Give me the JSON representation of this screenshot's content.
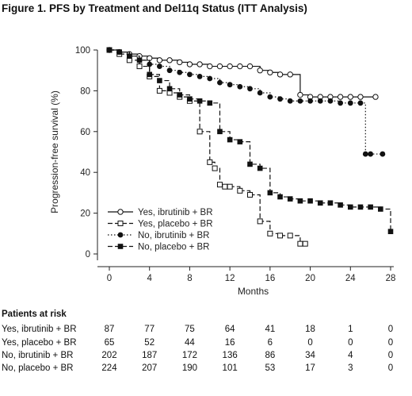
{
  "figure_title": "Figure 1. PFS by Treatment and Del11q Status (ITT Analysis)",
  "chart_data": {
    "type": "line",
    "title": "Figure 1. PFS by Treatment and Del11q Status (ITT Analysis)",
    "xlabel": "Months",
    "ylabel": "Progression-free survival (%)",
    "xlim": [
      0,
      28
    ],
    "ylim": [
      0,
      100
    ],
    "xticks": [
      "0",
      "4",
      "8",
      "12",
      "16",
      "20",
      "24",
      "28"
    ],
    "yticks": [
      "0",
      "20",
      "40",
      "60",
      "80",
      "100"
    ],
    "grid": false,
    "legend_position": "bottom-left",
    "series": [
      {
        "name": "Yes, ibrutinib + BR",
        "line_style": "solid",
        "marker": "open-circle",
        "x": [
          0,
          1,
          2,
          3,
          4,
          5,
          6,
          7,
          8,
          9,
          10,
          11,
          12,
          13,
          14,
          15,
          16,
          17,
          18,
          19,
          20,
          21,
          22,
          23,
          24,
          25,
          26.5
        ],
        "y": [
          100,
          99,
          98,
          97,
          96,
          95,
          95,
          94,
          93,
          93,
          92,
          92,
          92,
          92,
          92,
          90,
          89,
          88,
          88,
          78,
          77,
          77,
          77,
          77,
          77,
          77,
          77
        ]
      },
      {
        "name": "Yes, placebo + BR",
        "line_style": "dashed",
        "marker": "open-square",
        "x": [
          0,
          1,
          2,
          3,
          4,
          5,
          6,
          7,
          8,
          9,
          10,
          10.5,
          11,
          11.5,
          12,
          13,
          14,
          15,
          16,
          17,
          18,
          19,
          19.5
        ],
        "y": [
          100,
          98,
          95,
          92,
          87,
          80,
          79,
          77,
          75,
          60,
          45,
          42,
          34,
          33,
          33,
          31,
          29,
          16,
          10,
          9,
          9,
          5,
          5
        ]
      },
      {
        "name": "No, ibrutinib + BR",
        "line_style": "dotted",
        "marker": "filled-circle",
        "x": [
          0,
          1,
          2,
          3,
          4,
          5,
          6,
          7,
          8,
          9,
          10,
          11,
          12,
          13,
          14,
          15,
          16,
          17,
          18,
          19,
          20,
          21,
          22,
          23,
          24,
          25,
          25.5,
          26,
          27.2
        ],
        "y": [
          100,
          99,
          97,
          95,
          93,
          92,
          90,
          89,
          88,
          87,
          86,
          84,
          83,
          82,
          81,
          79,
          77,
          76,
          75,
          75,
          75,
          75,
          75,
          74,
          74,
          74,
          49,
          49,
          49
        ]
      },
      {
        "name": "No, placebo + BR",
        "line_style": "dashed",
        "marker": "filled-square",
        "x": [
          0,
          1,
          2,
          3,
          4,
          5,
          6,
          7,
          8,
          9,
          10,
          11,
          12,
          13,
          14,
          15,
          16,
          17,
          18,
          19,
          20,
          21,
          22,
          23,
          24,
          25,
          26,
          27,
          28
        ],
        "y": [
          100,
          99,
          97,
          95,
          88,
          85,
          81,
          78,
          76,
          75,
          74,
          60,
          56,
          55,
          44,
          42,
          30,
          28,
          27,
          26,
          26,
          25,
          25,
          24,
          23,
          23,
          23,
          22,
          11
        ]
      }
    ]
  },
  "risk_table": {
    "title": "Patients at risk",
    "rows": [
      {
        "label": "Yes, ibrutinib + BR",
        "values": [
          "87",
          "77",
          "75",
          "64",
          "41",
          "18",
          "1",
          "0"
        ]
      },
      {
        "label": "Yes, placebo + BR",
        "values": [
          "65",
          "52",
          "44",
          "16",
          "6",
          "0",
          "0",
          "0"
        ]
      },
      {
        "label": "No, ibrutinib + BR",
        "values": [
          "202",
          "187",
          "172",
          "136",
          "86",
          "34",
          "4",
          "0"
        ]
      },
      {
        "label": "No, placebo + BR",
        "values": [
          "224",
          "207",
          "190",
          "101",
          "53",
          "17",
          "3",
          "0"
        ]
      }
    ]
  }
}
